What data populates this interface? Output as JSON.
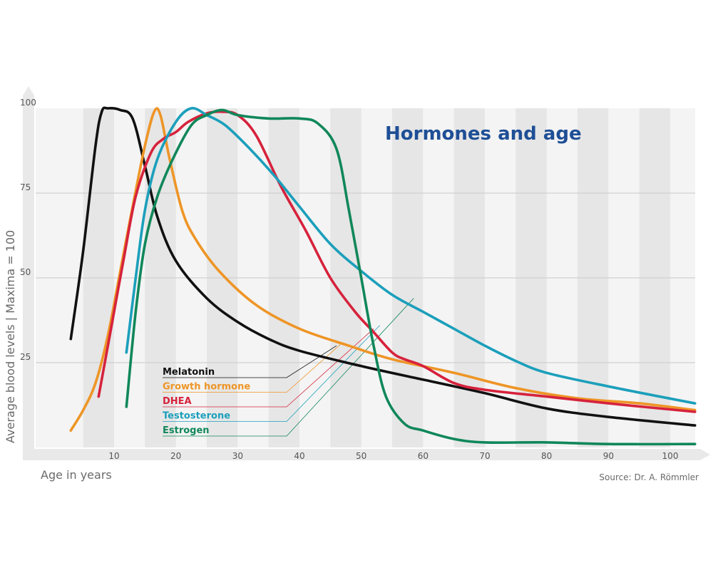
{
  "chart_data": {
    "type": "line",
    "title": "Hormones and age",
    "xlabel": "Age in years",
    "ylabel": "Average blood levels | Maxima = 100",
    "source": "Source: Dr. A. Römmler",
    "xlim": [
      0,
      105
    ],
    "ylim": [
      0,
      100
    ],
    "xticks": [
      10,
      20,
      30,
      40,
      50,
      60,
      70,
      80,
      90,
      100
    ],
    "yticks": [
      25,
      50,
      75,
      100
    ],
    "grid": "horizontal lines at y ticks, alternating vertical bands every 5 years",
    "series": [
      {
        "name": "Melatonin",
        "color": "#111111",
        "points": [
          [
            3,
            32
          ],
          [
            5,
            58
          ],
          [
            7,
            89
          ],
          [
            8,
            99
          ],
          [
            9,
            100
          ],
          [
            11,
            99.5
          ],
          [
            13,
            97
          ],
          [
            15,
            83
          ],
          [
            17,
            68
          ],
          [
            20,
            55
          ],
          [
            25,
            44
          ],
          [
            30,
            37
          ],
          [
            35,
            32
          ],
          [
            40,
            28.5
          ],
          [
            50,
            24
          ],
          [
            60,
            20
          ],
          [
            70,
            16
          ],
          [
            80,
            11.5
          ],
          [
            90,
            9
          ],
          [
            104,
            6.5
          ]
        ]
      },
      {
        "name": "Growth hormone",
        "color": "#ee9526",
        "points": [
          [
            3,
            5
          ],
          [
            5,
            11
          ],
          [
            7,
            19
          ],
          [
            9,
            33
          ],
          [
            11,
            52
          ],
          [
            13,
            71
          ],
          [
            15,
            89
          ],
          [
            16.5,
            99
          ],
          [
            17.5,
            98
          ],
          [
            19,
            85
          ],
          [
            21,
            70
          ],
          [
            23,
            62
          ],
          [
            27,
            52
          ],
          [
            33,
            42
          ],
          [
            40,
            35
          ],
          [
            48,
            30
          ],
          [
            55,
            26
          ],
          [
            65,
            22
          ],
          [
            75,
            17.5
          ],
          [
            85,
            14.5
          ],
          [
            95,
            13
          ],
          [
            104,
            11
          ]
        ]
      },
      {
        "name": "DHEA",
        "color": "#d6223c",
        "points": [
          [
            7.5,
            15
          ],
          [
            9.5,
            35
          ],
          [
            11.5,
            55
          ],
          [
            13.5,
            74
          ],
          [
            16,
            87
          ],
          [
            18,
            91
          ],
          [
            20,
            93
          ],
          [
            22,
            96
          ],
          [
            25,
            98.5
          ],
          [
            27.5,
            99
          ],
          [
            30,
            98
          ],
          [
            33,
            92
          ],
          [
            37,
            77
          ],
          [
            41,
            64
          ],
          [
            45,
            50
          ],
          [
            49,
            40
          ],
          [
            52,
            34
          ],
          [
            55,
            28
          ],
          [
            57,
            26
          ],
          [
            60,
            24
          ],
          [
            65,
            19
          ],
          [
            70,
            17
          ],
          [
            80,
            15
          ],
          [
            90,
            13
          ],
          [
            104,
            10.5
          ]
        ]
      },
      {
        "name": "Testosterone",
        "color": "#1b9fbb",
        "points": [
          [
            12,
            28
          ],
          [
            13.5,
            50
          ],
          [
            15,
            70
          ],
          [
            17,
            85
          ],
          [
            20,
            96
          ],
          [
            22.5,
            100
          ],
          [
            25,
            98
          ],
          [
            28,
            95
          ],
          [
            32,
            88
          ],
          [
            36,
            80
          ],
          [
            40,
            71
          ],
          [
            45,
            60
          ],
          [
            50,
            52
          ],
          [
            55,
            45
          ],
          [
            60,
            40
          ],
          [
            65,
            35
          ],
          [
            70,
            30
          ],
          [
            75,
            25.5
          ],
          [
            80,
            22
          ],
          [
            90,
            18
          ],
          [
            104,
            13
          ]
        ]
      },
      {
        "name": "Estrogen",
        "color": "#10875a",
        "points": [
          [
            12,
            12
          ],
          [
            13.5,
            40
          ],
          [
            15,
            60
          ],
          [
            17,
            74
          ],
          [
            19.5,
            85
          ],
          [
            22.5,
            95
          ],
          [
            25,
            98
          ],
          [
            27.5,
            99.5
          ],
          [
            30,
            98
          ],
          [
            35,
            97
          ],
          [
            40,
            97
          ],
          [
            43,
            95.5
          ],
          [
            46,
            88
          ],
          [
            48,
            70
          ],
          [
            50,
            50
          ],
          [
            52,
            30
          ],
          [
            54,
            15
          ],
          [
            57,
            7
          ],
          [
            60,
            5
          ],
          [
            65,
            2.5
          ],
          [
            70,
            1.5
          ],
          [
            80,
            1.5
          ],
          [
            90,
            1
          ],
          [
            104,
            1
          ]
        ]
      }
    ],
    "legend_connectors": [
      {
        "name": "Melatonin",
        "to_x": 46,
        "to_y": 30
      },
      {
        "name": "Growth hormone",
        "to_x": 47,
        "to_y": 31
      },
      {
        "name": "DHEA",
        "to_x": 52,
        "to_y": 35
      },
      {
        "name": "Testosterone",
        "to_x": 53,
        "to_y": 36
      },
      {
        "name": "Estrogen",
        "to_x": 58.5,
        "to_y": 44
      }
    ]
  }
}
